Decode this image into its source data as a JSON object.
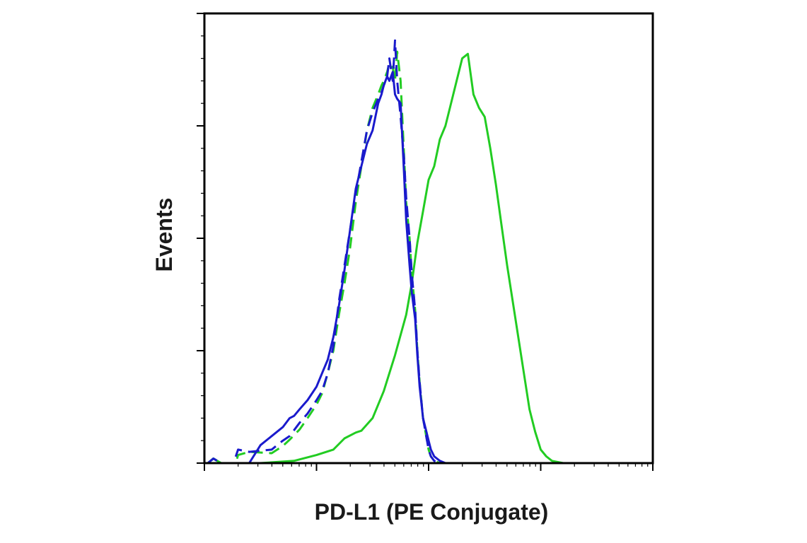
{
  "chart_data": {
    "type": "line",
    "title": "",
    "xlabel": "PD-L1 (PE Conjugate)",
    "ylabel": "Events",
    "x_scale": "log",
    "xlim": [
      0,
      4
    ],
    "ylim": [
      0,
      100
    ],
    "tick_labels_shown": false,
    "grid": false,
    "legend": "none",
    "series": [
      {
        "color": "#22cc22",
        "style": "dashed",
        "x": [
          0.03,
          0.08,
          0.15,
          0.28,
          0.3,
          0.4,
          0.6,
          0.7,
          0.76,
          0.85,
          0.92,
          1.0,
          1.05,
          1.1,
          1.15,
          1.2,
          1.25,
          1.3,
          1.35,
          1.4,
          1.45,
          1.5,
          1.55,
          1.58,
          1.6,
          1.63,
          1.65,
          1.68,
          1.7,
          1.72,
          1.75,
          1.78,
          1.8,
          1.83,
          1.85,
          1.88,
          1.9,
          1.92,
          1.95,
          2.0,
          2.02,
          2.05,
          2.1,
          2.15,
          2.2,
          2.3,
          2.5,
          3.0,
          4.0
        ],
        "y": [
          0,
          1,
          0,
          0,
          1.8,
          2.5,
          2.2,
          3.8,
          5.2,
          7.5,
          10,
          13,
          15.5,
          20,
          25,
          33,
          40,
          48,
          58,
          66,
          74,
          79,
          82,
          84,
          85,
          87,
          89,
          88,
          85,
          91.5,
          85,
          69,
          58,
          50,
          42,
          34,
          25,
          18,
          10,
          3,
          1.5,
          0.5,
          0,
          0,
          0,
          0,
          0,
          0,
          0
        ]
      },
      {
        "color": "#22cc22",
        "style": "solid",
        "x": [
          0.03,
          0.08,
          0.15,
          0.3,
          0.5,
          0.8,
          1.0,
          1.15,
          1.25,
          1.35,
          1.4,
          1.5,
          1.6,
          1.7,
          1.8,
          1.85,
          1.9,
          1.95,
          2.0,
          2.05,
          2.1,
          2.15,
          2.2,
          2.25,
          2.3,
          2.35,
          2.4,
          2.45,
          2.5,
          2.55,
          2.6,
          2.65,
          2.7,
          2.75,
          2.8,
          2.85,
          2.9,
          2.95,
          3.0,
          3.05,
          3.1,
          3.2,
          3.3,
          3.5,
          3.7,
          4.0
        ],
        "y": [
          0,
          1,
          0,
          0,
          0,
          0.5,
          1.8,
          3,
          5.5,
          6.8,
          7.2,
          10,
          16,
          24,
          33,
          40,
          49,
          56,
          63,
          66,
          72,
          75,
          80,
          85,
          90,
          91,
          82,
          79,
          77,
          70,
          62,
          53,
          44,
          36,
          28,
          20,
          12,
          7,
          3,
          1.5,
          0.5,
          0,
          0,
          0,
          0,
          0
        ]
      },
      {
        "color": "#1a1acc",
        "style": "dashed",
        "x": [
          0.03,
          0.08,
          0.15,
          0.26,
          0.3,
          0.4,
          0.6,
          0.7,
          0.76,
          0.85,
          0.92,
          1.0,
          1.05,
          1.1,
          1.15,
          1.2,
          1.25,
          1.3,
          1.35,
          1.4,
          1.45,
          1.5,
          1.55,
          1.58,
          1.6,
          1.63,
          1.65,
          1.68,
          1.7,
          1.72,
          1.75,
          1.78,
          1.8,
          1.83,
          1.85,
          1.88,
          1.9,
          1.92,
          1.95,
          2.0,
          2.02,
          2.05,
          2.1,
          2.15,
          2.2,
          2.3,
          2.5,
          3.0,
          4.0
        ],
        "y": [
          0,
          1,
          0,
          0,
          3,
          2.5,
          3,
          5,
          6,
          9,
          11,
          14,
          16,
          20,
          26,
          36,
          44,
          52,
          60,
          67,
          74,
          78,
          81,
          82.5,
          84,
          86,
          90,
          85,
          94,
          85,
          77,
          68,
          59,
          50,
          42,
          34,
          25,
          18,
          10,
          3,
          1.5,
          0.5,
          0,
          0,
          0,
          0,
          0,
          0,
          0
        ]
      },
      {
        "color": "#1a1acc",
        "style": "solid",
        "x": [
          0.03,
          0.08,
          0.15,
          0.3,
          0.4,
          0.5,
          0.6,
          0.7,
          0.76,
          0.8,
          0.85,
          0.92,
          1.0,
          1.05,
          1.1,
          1.15,
          1.2,
          1.25,
          1.3,
          1.35,
          1.4,
          1.45,
          1.5,
          1.55,
          1.58,
          1.6,
          1.63,
          1.65,
          1.68,
          1.7,
          1.72,
          1.75,
          1.78,
          1.8,
          1.83,
          1.85,
          1.88,
          1.9,
          1.92,
          1.95,
          2.0,
          2.02,
          2.05,
          2.1,
          2.15,
          2.2,
          2.3,
          2.5,
          3.0,
          4.0
        ],
        "y": [
          0,
          0,
          0,
          0,
          0,
          4,
          6,
          8,
          10,
          10.5,
          12,
          14,
          17,
          20,
          23,
          28,
          35,
          43,
          52,
          61,
          66,
          71,
          74,
          80,
          82,
          84,
          86,
          85,
          87,
          82,
          81,
          80,
          65,
          54,
          44,
          38,
          32,
          24,
          17,
          10,
          5,
          3,
          1.5,
          0.5,
          0,
          0,
          0,
          0,
          0,
          0
        ]
      }
    ]
  }
}
